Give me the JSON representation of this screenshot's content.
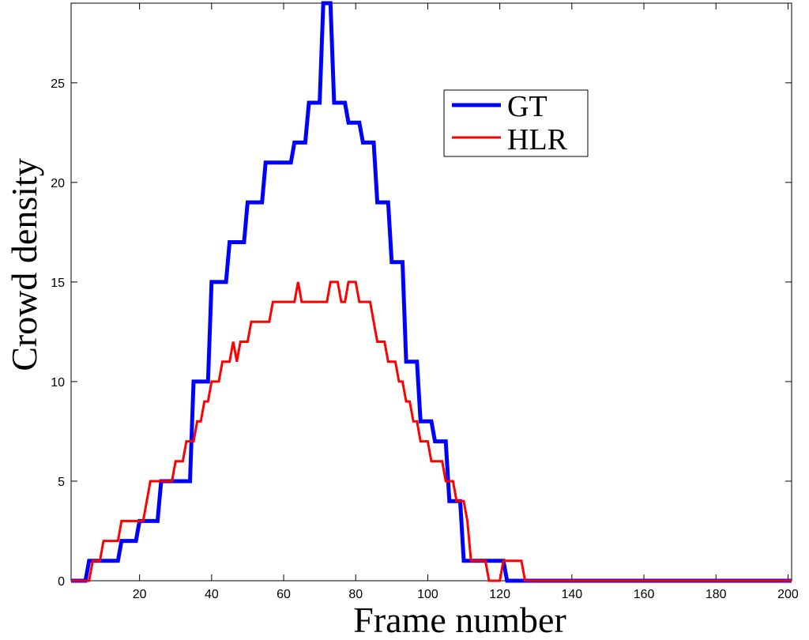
{
  "chart_data": {
    "type": "line",
    "title": "",
    "xlabel": "Frame number",
    "ylabel": "Crowd density",
    "xlim": [
      1,
      201
    ],
    "ylim": [
      0,
      29
    ],
    "xticks": [
      20,
      40,
      60,
      80,
      100,
      120,
      140,
      160,
      180,
      200
    ],
    "yticks": [
      0,
      5,
      10,
      15,
      20,
      25
    ],
    "grid": false,
    "legend_position": "top-right",
    "series": [
      {
        "name": "GT",
        "color": "#0000ff",
        "points": [
          [
            1,
            0
          ],
          [
            5,
            0
          ],
          [
            6,
            1
          ],
          [
            14,
            1
          ],
          [
            15,
            2
          ],
          [
            19,
            2
          ],
          [
            20,
            3
          ],
          [
            25,
            3
          ],
          [
            26,
            5
          ],
          [
            34,
            5
          ],
          [
            35,
            10
          ],
          [
            39,
            10
          ],
          [
            40,
            15
          ],
          [
            44,
            15
          ],
          [
            45,
            17
          ],
          [
            49,
            17
          ],
          [
            50,
            19
          ],
          [
            54,
            19
          ],
          [
            55,
            21
          ],
          [
            62,
            21
          ],
          [
            63,
            22
          ],
          [
            66,
            22
          ],
          [
            67,
            24
          ],
          [
            70,
            24
          ],
          [
            71,
            29
          ],
          [
            73,
            29
          ],
          [
            74,
            24
          ],
          [
            77,
            24
          ],
          [
            78,
            23
          ],
          [
            81,
            23
          ],
          [
            82,
            22
          ],
          [
            85,
            22
          ],
          [
            86,
            19
          ],
          [
            89,
            19
          ],
          [
            90,
            16
          ],
          [
            93,
            16
          ],
          [
            94,
            11
          ],
          [
            97,
            11
          ],
          [
            98,
            8
          ],
          [
            101,
            8
          ],
          [
            102,
            7
          ],
          [
            105,
            7
          ],
          [
            106,
            4
          ],
          [
            109,
            4
          ],
          [
            110,
            1
          ],
          [
            121,
            1
          ],
          [
            122,
            0
          ],
          [
            201,
            0
          ]
        ]
      },
      {
        "name": "HLR",
        "color": "#ff0000",
        "points": [
          [
            1,
            0
          ],
          [
            6,
            0
          ],
          [
            7,
            1
          ],
          [
            9,
            1
          ],
          [
            10,
            2
          ],
          [
            14,
            2
          ],
          [
            15,
            3
          ],
          [
            21,
            3
          ],
          [
            22,
            4
          ],
          [
            23,
            5
          ],
          [
            29,
            5
          ],
          [
            30,
            6
          ],
          [
            32,
            6
          ],
          [
            33,
            7
          ],
          [
            35,
            7
          ],
          [
            36,
            8
          ],
          [
            37,
            8
          ],
          [
            38,
            9
          ],
          [
            39,
            9
          ],
          [
            40,
            10
          ],
          [
            42,
            10
          ],
          [
            43,
            11
          ],
          [
            45,
            11
          ],
          [
            46,
            12
          ],
          [
            47,
            11
          ],
          [
            48,
            12
          ],
          [
            50,
            12
          ],
          [
            51,
            13
          ],
          [
            56,
            13
          ],
          [
            57,
            14
          ],
          [
            63,
            14
          ],
          [
            64,
            15
          ],
          [
            65,
            14
          ],
          [
            72,
            14
          ],
          [
            73,
            15
          ],
          [
            75,
            15
          ],
          [
            76,
            14
          ],
          [
            77,
            14
          ],
          [
            78,
            15
          ],
          [
            80,
            15
          ],
          [
            81,
            14
          ],
          [
            84,
            14
          ],
          [
            85,
            13
          ],
          [
            86,
            12
          ],
          [
            88,
            12
          ],
          [
            89,
            11
          ],
          [
            91,
            11
          ],
          [
            92,
            10
          ],
          [
            93,
            10
          ],
          [
            94,
            9
          ],
          [
            95,
            9
          ],
          [
            96,
            8
          ],
          [
            97,
            8
          ],
          [
            98,
            7
          ],
          [
            100,
            7
          ],
          [
            101,
            6
          ],
          [
            104,
            6
          ],
          [
            105,
            5
          ],
          [
            107,
            5
          ],
          [
            108,
            4
          ],
          [
            110,
            4
          ],
          [
            111,
            3
          ],
          [
            112,
            1
          ],
          [
            116,
            1
          ],
          [
            117,
            0
          ],
          [
            120,
            0
          ],
          [
            121,
            1
          ],
          [
            126,
            1
          ],
          [
            127,
            0
          ],
          [
            201,
            0
          ]
        ]
      }
    ]
  }
}
